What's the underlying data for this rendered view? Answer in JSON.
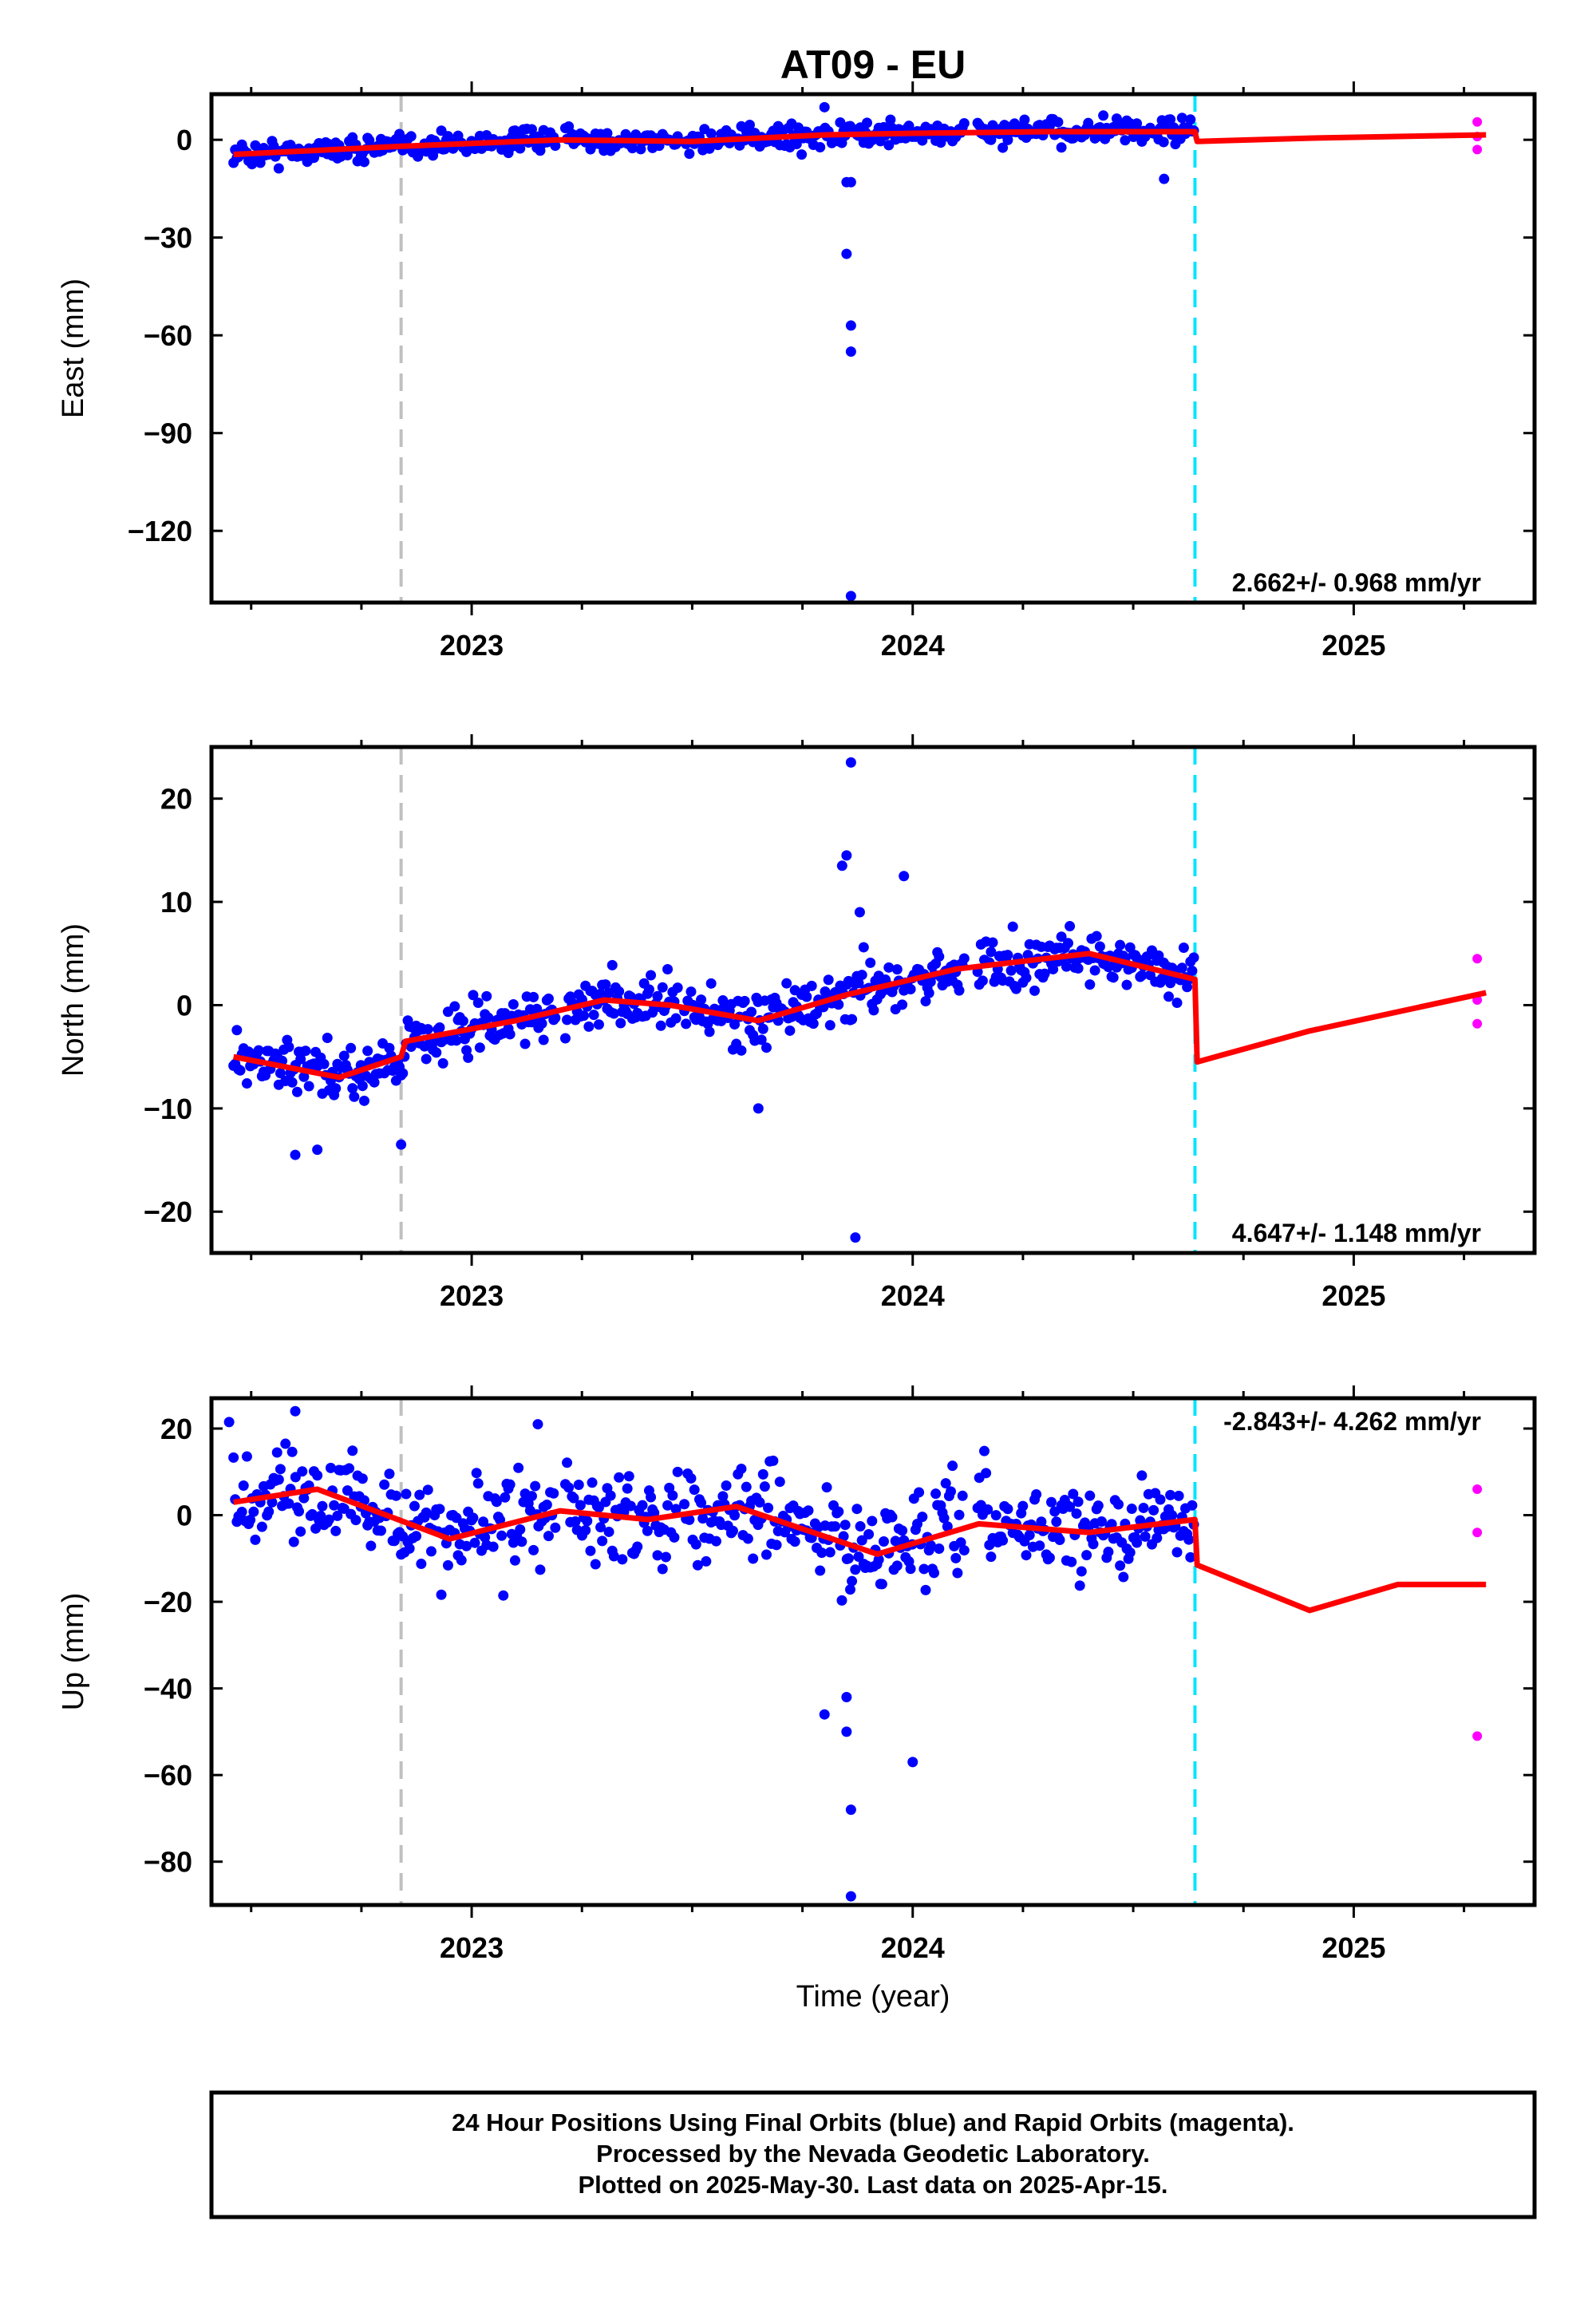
{
  "title": "AT09 - EU",
  "xlabel": "Time (year)",
  "colors": {
    "final_orbits": "#0000ff",
    "rapid_orbits": "#ff00ff",
    "model": "#ff0000",
    "equipment_change": "#c0c0c0",
    "last_final": "#00e5ff"
  },
  "footer": {
    "line1": "24 Hour Positions Using Final Orbits (blue) and Rapid Orbits (magenta).",
    "line2": "Processed by the Nevada Geodetic Laboratory.",
    "line3": "Plotted on 2025-May-30. Last data on 2025-Apr-15."
  },
  "chart_data": [
    {
      "type": "scatter",
      "name": "East",
      "ylabel": "East (mm)",
      "rate": "2.662+/- 0.968 mm/yr",
      "xlim": [
        2022.41,
        2025.41
      ],
      "ylim": [
        -142,
        14
      ],
      "xticks": [
        "2023",
        "2024",
        "2025"
      ],
      "yticks": [
        0,
        -30,
        -60,
        -90,
        -120
      ],
      "grey_line_x": 2022.84,
      "cyan_line_x": 2024.64,
      "trend": [
        [
          2022.46,
          -4.5
        ],
        [
          2022.84,
          -2.0
        ],
        [
          2023.2,
          0
        ],
        [
          2023.5,
          -0.5
        ],
        [
          2023.8,
          1.5
        ],
        [
          2024.0,
          2.0
        ],
        [
          2024.3,
          2.5
        ],
        [
          2024.64,
          2.5
        ],
        [
          2024.645,
          -0.5
        ],
        [
          2024.9,
          0.5
        ],
        [
          2025.3,
          1.5
        ]
      ],
      "noise": 3,
      "outliers": [
        [
          2023.85,
          -13
        ],
        [
          2023.86,
          -13
        ],
        [
          2023.85,
          -35
        ],
        [
          2023.86,
          -57
        ],
        [
          2023.86,
          -65
        ],
        [
          2023.86,
          -140
        ],
        [
          2024.57,
          -12
        ],
        [
          2023.8,
          10
        ]
      ],
      "rapid": [
        [
          2025.28,
          5.5
        ],
        [
          2025.28,
          1
        ],
        [
          2025.28,
          -3
        ]
      ]
    },
    {
      "type": "scatter",
      "name": "North",
      "ylabel": "North (mm)",
      "rate": "4.647+/- 1.148 mm/yr",
      "xlim": [
        2022.41,
        2025.41
      ],
      "ylim": [
        -24,
        25
      ],
      "xticks": [
        "2023",
        "2024",
        "2025"
      ],
      "yticks": [
        20,
        10,
        0,
        -10,
        -20
      ],
      "grey_line_x": 2022.84,
      "cyan_line_x": 2024.64,
      "trend": [
        [
          2022.46,
          -5.0
        ],
        [
          2022.7,
          -7.0
        ],
        [
          2022.84,
          -5.0
        ],
        [
          2022.85,
          -3.5
        ],
        [
          2023.1,
          -1.5
        ],
        [
          2023.3,
          0.5
        ],
        [
          2023.45,
          0.0
        ],
        [
          2023.65,
          -1.5
        ],
        [
          2023.85,
          1.0
        ],
        [
          2024.1,
          3.5
        ],
        [
          2024.4,
          5.0
        ],
        [
          2024.64,
          2.5
        ],
        [
          2024.645,
          -5.5
        ],
        [
          2024.9,
          -2.5
        ],
        [
          2025.3,
          1.2
        ]
      ],
      "noise": 2.2,
      "outliers": [
        [
          2023.86,
          23.5
        ],
        [
          2023.87,
          -22.5
        ],
        [
          2023.85,
          14.5
        ],
        [
          2023.84,
          13.5
        ],
        [
          2023.88,
          9
        ],
        [
          2023.98,
          12.5
        ],
        [
          2022.6,
          -14.5
        ],
        [
          2022.65,
          -14.0
        ],
        [
          2022.84,
          -13.5
        ],
        [
          2023.65,
          -10
        ]
      ],
      "rapid": [
        [
          2025.28,
          4.5
        ],
        [
          2025.28,
          0.5
        ],
        [
          2025.28,
          -1.8
        ]
      ]
    },
    {
      "type": "scatter",
      "name": "Up",
      "ylabel": "Up (mm)",
      "rate": "-2.843+/- 4.262 mm/yr",
      "xlim": [
        2022.41,
        2025.41
      ],
      "ylim": [
        -90,
        27
      ],
      "xticks": [
        "2023",
        "2024",
        "2025"
      ],
      "yticks": [
        20,
        0,
        -20,
        -40,
        -60,
        -80
      ],
      "grey_line_x": 2022.84,
      "cyan_line_x": 2024.64,
      "trend": [
        [
          2022.46,
          3
        ],
        [
          2022.65,
          6
        ],
        [
          2022.95,
          -5.5
        ],
        [
          2023.2,
          1
        ],
        [
          2023.4,
          -1
        ],
        [
          2023.6,
          2
        ],
        [
          2023.92,
          -9
        ],
        [
          2024.15,
          -2
        ],
        [
          2024.4,
          -4
        ],
        [
          2024.64,
          -1
        ],
        [
          2024.645,
          -11.5
        ],
        [
          2024.9,
          -22
        ],
        [
          2025.1,
          -16
        ],
        [
          2025.3,
          -16
        ]
      ],
      "noise": 9,
      "outliers": [
        [
          2023.86,
          -68
        ],
        [
          2023.86,
          -88
        ],
        [
          2024.0,
          -57
        ],
        [
          2023.85,
          -50
        ],
        [
          2023.8,
          -46
        ],
        [
          2023.85,
          -42
        ],
        [
          2022.45,
          21.5
        ],
        [
          2023.15,
          21
        ],
        [
          2022.6,
          24
        ]
      ],
      "rapid": [
        [
          2025.28,
          6
        ],
        [
          2025.28,
          -4
        ],
        [
          2025.28,
          -51
        ]
      ]
    }
  ]
}
